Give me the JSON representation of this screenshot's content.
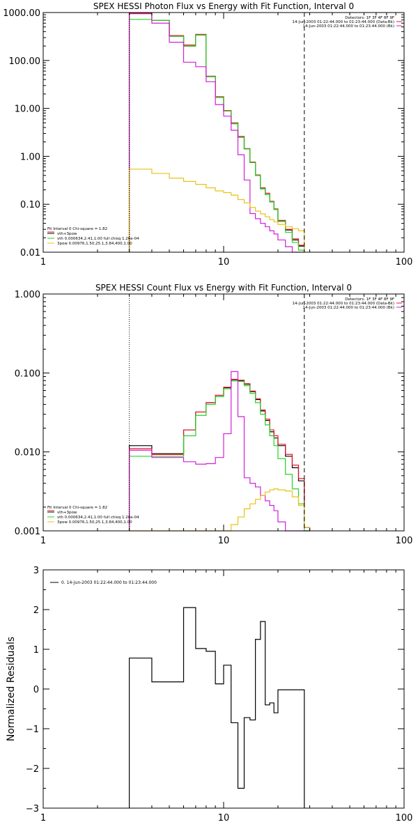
{
  "colors": {
    "black": "#000000",
    "red": "#e8142a",
    "green": "#22d322",
    "magenta": "#d21ed8",
    "orange": "#e8c214"
  },
  "chart_data": [
    {
      "type": "line",
      "title": "SPEX HESSI Photon Flux vs Energy with Fit Function, Interval 0",
      "xlabel": "",
      "ylabel": "",
      "xscale": "log",
      "yscale": "log",
      "xlim": [
        1,
        100
      ],
      "ylim": [
        0.01,
        1000
      ],
      "xticks": [
        "1",
        "10",
        "100"
      ],
      "yticks": [
        "0.01",
        "0.10",
        "1.00",
        "10.00",
        "100.00",
        "1000.00"
      ],
      "info": [
        "Detectors: 1F 3F 4F 8F 9F",
        "14-Jun-2003 01:22:44.000 to 01:23:44.000 (Data-Bk)",
        "14-Jun-2003 01:22:44.000 to 01:23:44.000 (Bk)"
      ],
      "legend": [
        "Fit Interval 0   Chi-square = 1.82",
        "vth+3pow",
        "vth 0.000634,2.41,1.00   full chisq 1.26e-04",
        "3pow 0.00976,1.50,25.1,3.84,400,1.00"
      ],
      "legend_position": "bottom-left",
      "thresholds": [
        {
          "x": 3,
          "style": "dotted"
        },
        {
          "x": 28,
          "style": "dashed"
        }
      ],
      "bin_edges": [
        3,
        4,
        5,
        6,
        7,
        8,
        9,
        10,
        11,
        12,
        13,
        14,
        15,
        16,
        17,
        18,
        19,
        20,
        22,
        24,
        26,
        28
      ],
      "series": [
        {
          "color": "black",
          "values": [
            950,
            690,
            320,
            200,
            340,
            46,
            17,
            8.8,
            4.8,
            2.5,
            1.42,
            0.74,
            0.4,
            0.21,
            0.16,
            0.112,
            0.078,
            0.044,
            0.029,
            0.018,
            0.0134
          ]
        },
        {
          "color": "red",
          "values": [
            950,
            690,
            330,
            210,
            350,
            47,
            17.5,
            9,
            5,
            2.6,
            1.45,
            0.76,
            0.41,
            0.22,
            0.17,
            0.115,
            0.08,
            0.046,
            0.03,
            0.019,
            0.014
          ]
        },
        {
          "color": "green",
          "values": [
            720,
            690,
            320,
            200,
            340,
            46,
            17,
            8.8,
            4.8,
            2.5,
            1.42,
            0.74,
            0.4,
            0.21,
            0.16,
            0.112,
            0.078,
            0.044,
            0.026,
            0.016,
            0.011
          ]
        },
        {
          "color": "magenta",
          "values": [
            980,
            600,
            240,
            92,
            74,
            36,
            12,
            6.9,
            3.5,
            1.08,
            0.32,
            0.064,
            0.05,
            0.04,
            0.034,
            0.028,
            0.024,
            0.018,
            0.013,
            0.01,
            0.01
          ]
        },
        {
          "color": "orange",
          "values": [
            0.54,
            0.44,
            0.35,
            0.3,
            0.26,
            0.22,
            0.19,
            0.175,
            0.155,
            0.125,
            0.107,
            0.086,
            0.072,
            0.063,
            0.055,
            0.048,
            0.043,
            0.038,
            0.034,
            0.031,
            0.028
          ]
        }
      ]
    },
    {
      "type": "line",
      "title": "SPEX HESSI Count Flux vs Energy with Fit Function, Interval 0",
      "xlabel": "",
      "ylabel": "",
      "xscale": "log",
      "yscale": "log",
      "xlim": [
        1,
        100
      ],
      "ylim": [
        0.001,
        1.0
      ],
      "xticks": [
        "1",
        "10",
        "100"
      ],
      "yticks": [
        "0.001",
        "0.010",
        "0.100",
        "1.000"
      ],
      "info": [
        "Detectors: 1F 3F 4F 8F 9F",
        "14-Jun-2003 01:22:44.000 to 01:23:44.000 (Data-Bk)",
        "14-Jun-2003 01:22:44.000 to 01:23:44.000 (Bk)"
      ],
      "legend": [
        "Fit Interval 0   Chi-square = 1.82",
        "vth+3pow",
        "vth 0.000634,2.41,1.00   full chisq 1.26e-04",
        "3pow 0.00976,1.50,25.1,3.84,400,1.00"
      ],
      "legend_position": "bottom-left",
      "thresholds": [
        {
          "x": 3,
          "style": "dotted"
        },
        {
          "x": 28,
          "style": "dashed"
        }
      ],
      "bin_edges": [
        3,
        4,
        5,
        6,
        7,
        8,
        9,
        10,
        11,
        12,
        13,
        14,
        15,
        16,
        17,
        18,
        19,
        20,
        22,
        24,
        26,
        28,
        30
      ],
      "series": [
        {
          "color": "black",
          "values": [
            0.012,
            0.0095,
            0.0095,
            0.019,
            0.032,
            0.042,
            0.052,
            0.065,
            0.082,
            0.08,
            0.072,
            0.058,
            0.046,
            0.033,
            0.025,
            0.018,
            0.015,
            0.012,
            0.0088,
            0.0063,
            0.0043,
            0.0011
          ]
        },
        {
          "color": "red",
          "values": [
            0.011,
            0.0093,
            0.0093,
            0.019,
            0.032,
            0.042,
            0.052,
            0.066,
            0.083,
            0.081,
            0.073,
            0.059,
            0.047,
            0.034,
            0.026,
            0.019,
            0.016,
            0.0125,
            0.0093,
            0.0068,
            0.0046,
            0.0011
          ]
        },
        {
          "color": "green",
          "values": [
            0.0088,
            0.0088,
            0.0088,
            0.016,
            0.029,
            0.04,
            0.05,
            0.063,
            0.079,
            0.078,
            0.069,
            0.055,
            0.042,
            0.03,
            0.022,
            0.016,
            0.012,
            0.0082,
            0.0052,
            0.0034,
            0.0022,
            0.001
          ]
        },
        {
          "color": "magenta",
          "values": [
            0.0105,
            0.0085,
            0.0085,
            0.0075,
            0.007,
            0.0071,
            0.0085,
            0.017,
            0.104,
            0.028,
            0.0047,
            0.004,
            0.0036,
            0.0028,
            0.0024,
            0.0021,
            0.0018,
            0.0013,
            0.001,
            0.001,
            0.001,
            0.001
          ]
        },
        {
          "color": "orange",
          "values": [
            0.001,
            0.001,
            0.001,
            0.001,
            0.001,
            0.001,
            0.001,
            0.001,
            0.0012,
            0.0015,
            0.0019,
            0.0022,
            0.0025,
            0.0028,
            0.0031,
            0.0033,
            0.0034,
            0.0033,
            0.0032,
            0.0027,
            0.0021,
            0.0011
          ]
        }
      ]
    },
    {
      "type": "line",
      "title": "",
      "xlabel": "",
      "ylabel": "Normalized Residuals",
      "xscale": "log",
      "yscale": "linear",
      "xlim": [
        1,
        100
      ],
      "ylim": [
        -3,
        3
      ],
      "xticks": [
        "1",
        "10",
        "100"
      ],
      "yticks": [
        "-3",
        "-2",
        "-1",
        "0",
        "1",
        "2",
        "3"
      ],
      "legend": [
        "0. 14-Jun-2003 01:22:44.000 to 01:23:44.000"
      ],
      "legend_position": "top-left",
      "bin_edges": [
        3,
        4,
        5,
        6,
        7,
        8,
        9,
        10,
        11,
        12,
        13,
        14,
        15,
        16,
        17,
        18,
        19,
        20,
        22,
        24,
        26,
        28
      ],
      "series": [
        {
          "color": "black",
          "values": [
            0.78,
            0.18,
            0.18,
            2.05,
            1.02,
            0.95,
            0.13,
            0.6,
            -0.85,
            -2.5,
            -0.72,
            -0.78,
            1.25,
            1.7,
            -0.4,
            -0.35,
            -0.6,
            -0.02,
            -0.02,
            -0.02,
            -0.02
          ]
        }
      ]
    }
  ]
}
